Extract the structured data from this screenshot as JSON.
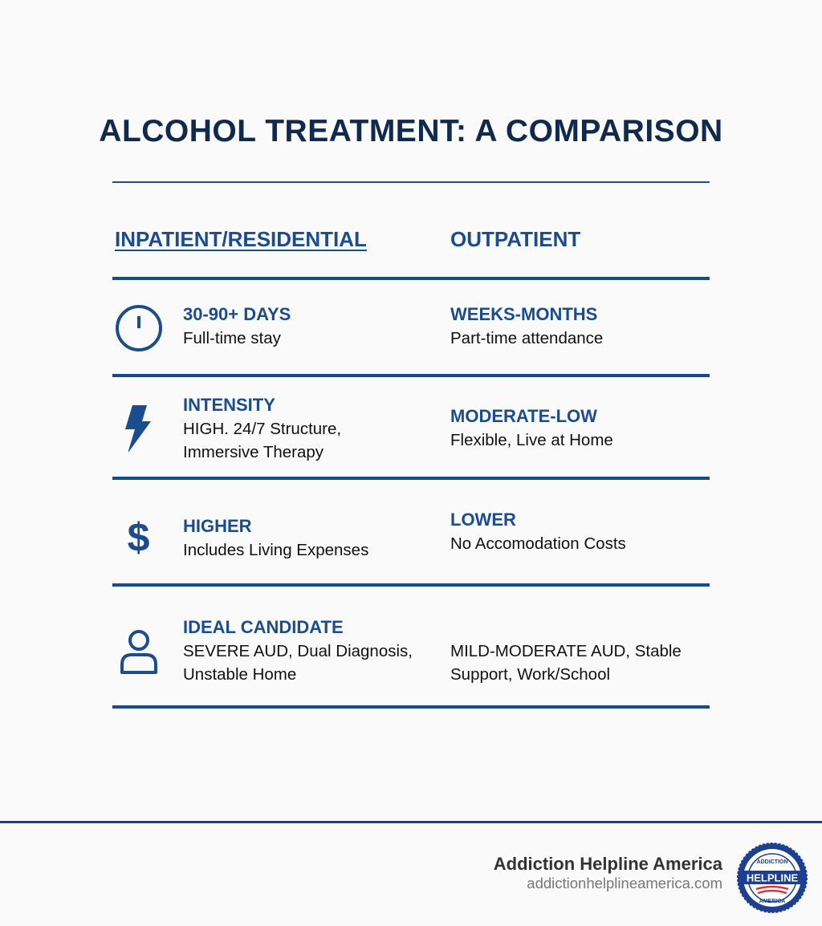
{
  "title": "ALCOHOL TREATMENT: A COMPARISON",
  "columns": {
    "left": "INPATIENT/RESIDENTIAL",
    "right": "OUTPATIENT"
  },
  "rows": [
    {
      "icon": "clock-icon",
      "left_heading": "30-90+ DAYS",
      "left_text": [
        "Full-time stay"
      ],
      "right_heading": "WEEKS-MONTHS",
      "right_text": [
        "Part-time attendance"
      ]
    },
    {
      "icon": "lightning-icon",
      "left_heading": "INTENSITY",
      "left_text": [
        "HIGH. 24/7 Structure,",
        "Immersive Therapy"
      ],
      "right_heading": "MODERATE-LOW",
      "right_text": [
        "Flexible, Live at Home"
      ]
    },
    {
      "icon": "dollar-icon",
      "left_heading": "HIGHER",
      "left_text": [
        "Includes Living Expenses"
      ],
      "right_heading": "LOWER",
      "right_text": [
        "No Accomodation Costs"
      ]
    },
    {
      "icon": "person-icon",
      "left_heading": "IDEAL CANDIDATE",
      "left_text": [
        "SEVERE AUD, Dual Diagnosis,",
        "Unstable Home"
      ],
      "right_heading": "",
      "right_text": [
        "MILD-MODERATE AUD, Stable",
        "Support, Work/School"
      ]
    }
  ],
  "footer": {
    "brand": "Addiction Helpline America",
    "url": "addictionhelplineamerica.com",
    "logo_text": [
      "ADDICTION",
      "HELPLINE",
      "AMERICA"
    ]
  },
  "colors": {
    "title": "#0f2a4e",
    "accent": "#1b4d8e",
    "rule": "#164a8c"
  }
}
